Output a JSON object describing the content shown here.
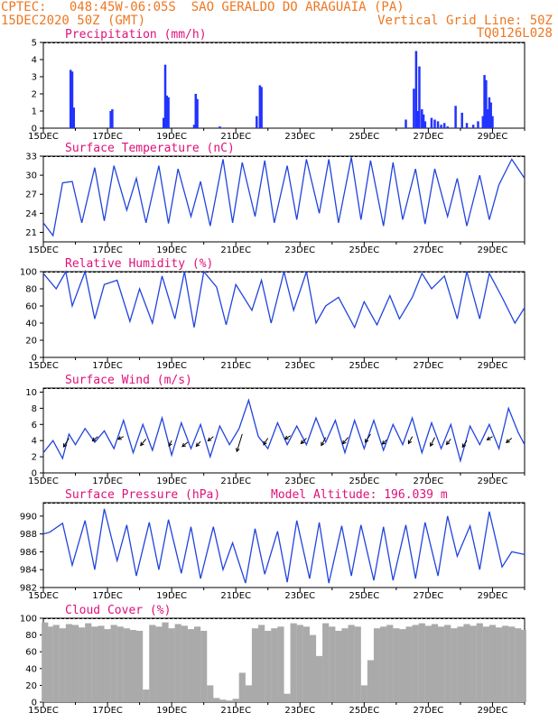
{
  "header": {
    "line1_left": "CPTEC:   048:45W-06:05S  SAO GERALDO DO ARAGUAIA (PA)",
    "line2_left": "15DEC2020 50Z (GMT)",
    "line2_right": "Vertical Grid Line: 50Z",
    "line3_right": "TQ0126L028"
  },
  "colors": {
    "header": "#ee7722",
    "title": "#e0107a",
    "line": "#2244dd",
    "bars": "#2233ff",
    "cloud": "#aaaaaa"
  },
  "date_labels": [
    "15DEC",
    "17DEC",
    "19DEC",
    "21DEC",
    "23DEC",
    "25DEC",
    "27DEC",
    "29DEC"
  ],
  "date_days": [
    15,
    17,
    19,
    21,
    23,
    25,
    27,
    29
  ],
  "x_range_days": [
    15,
    30
  ],
  "chart_data": [
    {
      "type": "bar",
      "title": "Precipitation (mm/h)",
      "ylim": [
        0,
        5
      ],
      "yticks": [
        0,
        1,
        2,
        3,
        4,
        5
      ],
      "x": [
        15.85,
        15.9,
        15.95,
        17.1,
        17.15,
        18.75,
        18.8,
        18.85,
        18.9,
        19.7,
        19.75,
        19.8,
        20.5,
        21.65,
        21.75,
        21.8,
        26.3,
        26.55,
        26.62,
        26.68,
        26.72,
        26.8,
        26.85,
        26.9,
        27.1,
        27.2,
        27.3,
        27.4,
        27.5,
        27.6,
        27.85,
        28.05,
        28.2,
        28.4,
        28.55,
        28.7,
        28.75,
        28.8,
        28.85,
        28.9,
        28.95,
        29.0
      ],
      "values": [
        3.4,
        3.3,
        1.2,
        1.0,
        1.1,
        0.6,
        3.7,
        1.9,
        1.8,
        0.2,
        2.0,
        1.7,
        0.1,
        0.7,
        2.5,
        2.4,
        0.5,
        2.3,
        4.5,
        1.0,
        3.6,
        1.1,
        0.8,
        0.4,
        0.6,
        0.5,
        0.4,
        0.2,
        0.3,
        0.1,
        1.3,
        0.9,
        0.3,
        0.2,
        0.4,
        0.7,
        3.1,
        2.8,
        1.1,
        1.8,
        1.5,
        0.7
      ]
    },
    {
      "type": "line",
      "title": "Surface Temperature (nC)",
      "ylim": [
        19.5,
        33
      ],
      "yticks": [
        21,
        24,
        27,
        30,
        33
      ],
      "x": [
        15.0,
        15.3,
        15.6,
        15.9,
        16.2,
        16.6,
        16.9,
        17.2,
        17.6,
        17.9,
        18.2,
        18.6,
        18.9,
        19.2,
        19.6,
        19.9,
        20.2,
        20.6,
        20.9,
        21.2,
        21.6,
        21.9,
        22.2,
        22.6,
        22.9,
        23.2,
        23.6,
        23.9,
        24.2,
        24.6,
        24.9,
        25.2,
        25.6,
        25.9,
        26.2,
        26.6,
        26.9,
        27.2,
        27.6,
        27.9,
        28.2,
        28.6,
        28.9,
        29.2,
        29.6,
        30.0
      ],
      "values": [
        22.5,
        20.5,
        28.8,
        29.0,
        22.5,
        31.2,
        22.8,
        31.5,
        24.5,
        29.5,
        22.5,
        31.5,
        22.4,
        31.0,
        23.5,
        29.0,
        22.0,
        32.5,
        22.5,
        32.0,
        23.5,
        32.3,
        22.5,
        31.5,
        23.0,
        32.5,
        24.0,
        32.5,
        22.5,
        32.8,
        23.0,
        32.3,
        22.0,
        32.0,
        23.0,
        31.0,
        22.3,
        31.0,
        23.5,
        29.5,
        22.0,
        30.0,
        23.0,
        28.5,
        32.5,
        29.5
      ]
    },
    {
      "type": "line",
      "title": "Relative Humidity (%)",
      "ylim": [
        0,
        100
      ],
      "yticks": [
        0,
        20,
        40,
        60,
        80,
        100
      ],
      "x": [
        15.0,
        15.4,
        15.7,
        15.9,
        16.3,
        16.6,
        16.9,
        17.3,
        17.7,
        18.0,
        18.4,
        18.7,
        19.1,
        19.4,
        19.7,
        20.0,
        20.4,
        20.7,
        21.0,
        21.5,
        21.8,
        22.1,
        22.5,
        22.8,
        23.2,
        23.5,
        23.8,
        24.2,
        24.7,
        25.0,
        25.4,
        25.8,
        26.1,
        26.5,
        26.8,
        27.1,
        27.5,
        27.9,
        28.2,
        28.6,
        28.9,
        29.3,
        29.7,
        30.0
      ],
      "values": [
        98,
        80,
        100,
        60,
        100,
        45,
        85,
        90,
        42,
        80,
        40,
        95,
        45,
        100,
        35,
        100,
        82,
        38,
        85,
        55,
        90,
        40,
        100,
        55,
        100,
        40,
        60,
        70,
        35,
        65,
        38,
        72,
        45,
        70,
        98,
        80,
        95,
        45,
        100,
        45,
        98,
        70,
        40,
        58
      ]
    },
    {
      "type": "line",
      "title": "Surface Wind (m/s)",
      "ylim": [
        0,
        10.5
      ],
      "yticks": [
        0,
        2,
        4,
        6,
        8,
        10
      ],
      "x": [
        15.0,
        15.3,
        15.6,
        15.8,
        16.0,
        16.3,
        16.6,
        16.9,
        17.2,
        17.5,
        17.8,
        18.1,
        18.4,
        18.7,
        19.0,
        19.3,
        19.6,
        19.9,
        20.2,
        20.5,
        20.8,
        21.1,
        21.4,
        21.7,
        22.0,
        22.3,
        22.6,
        22.9,
        23.2,
        23.5,
        23.8,
        24.1,
        24.4,
        24.7,
        25.0,
        25.3,
        25.6,
        25.9,
        26.2,
        26.5,
        26.8,
        27.1,
        27.4,
        27.7,
        28.0,
        28.3,
        28.6,
        28.9,
        29.2,
        29.5,
        29.8,
        30.0
      ],
      "values": [
        2.5,
        4.0,
        1.8,
        4.8,
        3.5,
        5.5,
        3.8,
        5.2,
        3.0,
        6.5,
        2.5,
        6.0,
        2.8,
        6.8,
        2.2,
        6.2,
        3.0,
        6.0,
        2.0,
        5.8,
        3.5,
        5.5,
        9.0,
        4.5,
        3.0,
        6.2,
        3.5,
        5.8,
        3.5,
        6.8,
        3.8,
        6.5,
        2.5,
        6.5,
        3.0,
        6.5,
        2.8,
        6.0,
        3.5,
        6.8,
        2.5,
        6.2,
        3.0,
        6.0,
        1.5,
        5.8,
        3.5,
        6.0,
        3.0,
        8.0,
        5.0,
        3.5
      ]
    },
    {
      "type": "line",
      "title": "Surface Pressure (hPa)",
      "subtitle": "Model Altitude: 196.039 m",
      "ylim": [
        982,
        991.5
      ],
      "yticks": [
        982,
        984,
        986,
        988,
        990
      ],
      "x": [
        15.0,
        15.2,
        15.6,
        15.9,
        16.3,
        16.6,
        16.9,
        17.3,
        17.6,
        17.9,
        18.3,
        18.6,
        18.9,
        19.3,
        19.6,
        19.9,
        20.3,
        20.6,
        20.9,
        21.3,
        21.6,
        21.9,
        22.3,
        22.6,
        22.9,
        23.3,
        23.6,
        23.9,
        24.3,
        24.6,
        24.9,
        25.3,
        25.6,
        25.9,
        26.3,
        26.6,
        26.9,
        27.3,
        27.6,
        27.9,
        28.3,
        28.6,
        28.9,
        29.3,
        29.6,
        30.0
      ],
      "values": [
        988.0,
        988.2,
        989.2,
        984.5,
        989.5,
        984.0,
        990.8,
        985.0,
        989.0,
        983.3,
        989.3,
        984.0,
        989.6,
        983.6,
        988.8,
        983.0,
        988.8,
        984.0,
        987.0,
        982.5,
        988.6,
        983.5,
        988.3,
        982.6,
        989.5,
        983.0,
        989.3,
        982.5,
        988.9,
        983.3,
        989.0,
        982.8,
        988.8,
        982.8,
        989.0,
        983.0,
        989.3,
        983.3,
        990.0,
        985.5,
        988.9,
        984.0,
        990.5,
        984.3,
        986.0,
        985.7
      ]
    },
    {
      "type": "bar",
      "title": "Cloud Cover (%)",
      "ylim": [
        0,
        100
      ],
      "yticks": [
        0,
        20,
        40,
        60,
        80,
        100
      ],
      "x": [
        15.05,
        15.2,
        15.4,
        15.6,
        15.8,
        16.0,
        16.2,
        16.4,
        16.6,
        16.8,
        17.0,
        17.2,
        17.4,
        17.6,
        17.8,
        18.0,
        18.2,
        18.4,
        18.6,
        18.8,
        19.0,
        19.2,
        19.4,
        19.6,
        19.8,
        20.0,
        20.2,
        20.4,
        20.6,
        20.8,
        21.0,
        21.2,
        21.4,
        21.6,
        21.8,
        22.0,
        22.2,
        22.4,
        22.6,
        22.8,
        23.0,
        23.2,
        23.4,
        23.6,
        23.8,
        24.0,
        24.2,
        24.4,
        24.6,
        24.8,
        25.0,
        25.2,
        25.4,
        25.6,
        25.8,
        26.0,
        26.2,
        26.4,
        26.6,
        26.8,
        27.0,
        27.2,
        27.4,
        27.6,
        27.8,
        28.0,
        28.2,
        28.4,
        28.6,
        28.8,
        29.0,
        29.2,
        29.4,
        29.6,
        29.8,
        29.95
      ],
      "values": [
        95,
        90,
        92,
        88,
        93,
        92,
        89,
        94,
        90,
        91,
        87,
        92,
        90,
        88,
        86,
        85,
        15,
        92,
        90,
        95,
        88,
        93,
        91,
        87,
        90,
        85,
        20,
        5,
        3,
        2,
        4,
        35,
        20,
        88,
        92,
        85,
        88,
        90,
        10,
        94,
        92,
        90,
        80,
        55,
        94,
        90,
        85,
        88,
        92,
        90,
        20,
        50,
        88,
        90,
        92,
        88,
        87,
        90,
        92,
        94,
        91,
        93,
        90,
        92,
        88,
        90,
        93,
        91,
        94,
        90,
        92,
        89,
        91,
        90,
        88,
        86
      ]
    }
  ],
  "wind_arrows": {
    "x": [
      15.8,
      16.7,
      17.5,
      18.2,
      19.0,
      19.5,
      19.9,
      20.3,
      21.2,
      22.0,
      22.7,
      23.2,
      23.8,
      24.5,
      25.2,
      25.7,
      26.5,
      27.2,
      27.7,
      28.2,
      29.0,
      29.6
    ],
    "y": [
      4.3,
      4.5,
      4.5,
      4.2,
      4.0,
      3.8,
      3.9,
      4.5,
      4.8,
      4.3,
      4.6,
      4.3,
      4.4,
      4.4,
      4.8,
      4.1,
      4.5,
      4.4,
      4.2,
      4.0,
      4.5,
      4.3
    ],
    "u": [
      -1.0,
      -1.0,
      -1.0,
      -1.0,
      -0.5,
      -1.0,
      -0.8,
      -1.0,
      -1.0,
      -0.8,
      -1.0,
      -1.0,
      -0.8,
      -1.0,
      -1.0,
      -0.8,
      -0.7,
      -0.8,
      -0.8,
      -0.8,
      -1.0,
      -1.0
    ],
    "v": [
      -1.6,
      -0.8,
      -0.5,
      -1.2,
      -1.0,
      -0.8,
      -0.9,
      -0.8,
      -3.2,
      -1.2,
      -0.6,
      -1.0,
      -1.5,
      -1.2,
      -1.5,
      -0.8,
      -1.3,
      -1.6,
      -1.0,
      -1.2,
      -0.6,
      -0.8
    ]
  }
}
